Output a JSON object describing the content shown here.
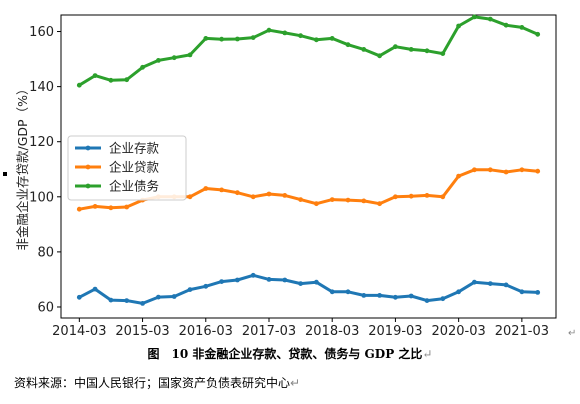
{
  "chart_data": {
    "type": "line",
    "ylabel": "非金融企业存贷款/GDP（%）",
    "xlabel": "",
    "ylim": [
      56,
      166
    ],
    "yticks": [
      60,
      80,
      100,
      120,
      140,
      160
    ],
    "xtick_labels": [
      "2014-03",
      "2015-03",
      "2016-03",
      "2017-03",
      "2018-03",
      "2019-03",
      "2020-03",
      "2021-03"
    ],
    "x_start": "2014-03",
    "x_end": "2021-06",
    "legend_position": "center-left",
    "grid": false,
    "x": [
      "2014-03",
      "2014-06",
      "2014-09",
      "2014-12",
      "2015-03",
      "2015-06",
      "2015-09",
      "2015-12",
      "2016-03",
      "2016-06",
      "2016-09",
      "2016-12",
      "2017-03",
      "2017-06",
      "2017-09",
      "2017-12",
      "2018-03",
      "2018-06",
      "2018-09",
      "2018-12",
      "2019-03",
      "2019-06",
      "2019-09",
      "2019-12",
      "2020-03",
      "2020-06",
      "2020-09",
      "2020-12",
      "2021-03",
      "2021-06"
    ],
    "series": [
      {
        "name": "企业存款",
        "color": "#1f77b4",
        "values": [
          63.5,
          66.5,
          62.5,
          62.3,
          61.3,
          63.6,
          63.8,
          66.3,
          67.5,
          69.2,
          69.8,
          71.5,
          70.0,
          69.8,
          68.5,
          69.0,
          65.5,
          65.5,
          64.2,
          64.2,
          63.5,
          64.0,
          62.3,
          63.0,
          65.5,
          69.0,
          68.5,
          68.0,
          65.5,
          65.3
        ]
      },
      {
        "name": "企业贷款",
        "color": "#ff7f0e",
        "values": [
          95.5,
          96.5,
          96.0,
          96.3,
          98.8,
          100.0,
          100.0,
          100.0,
          103.0,
          102.5,
          101.5,
          100.0,
          101.0,
          100.5,
          99.0,
          97.5,
          99.0,
          98.8,
          98.5,
          97.5,
          100.0,
          100.2,
          100.5,
          100.0,
          107.5,
          109.8,
          109.8,
          109.0,
          109.8,
          109.3
        ]
      },
      {
        "name": "企业债务",
        "color": "#2ca02c",
        "values": [
          140.5,
          144.0,
          142.3,
          142.5,
          147.0,
          149.5,
          150.5,
          151.5,
          157.5,
          157.2,
          157.3,
          157.8,
          160.5,
          159.5,
          158.5,
          157.0,
          157.5,
          155.2,
          153.5,
          151.2,
          154.5,
          153.5,
          153.0,
          152.0,
          162.0,
          165.3,
          164.5,
          162.3,
          161.5,
          159.0
        ]
      }
    ]
  },
  "caption": "图　10 非金融企业存款、贷款、债务与 GDP 之比",
  "source_note": "资料来源：中国人民银行；国家资产负债表研究中心"
}
